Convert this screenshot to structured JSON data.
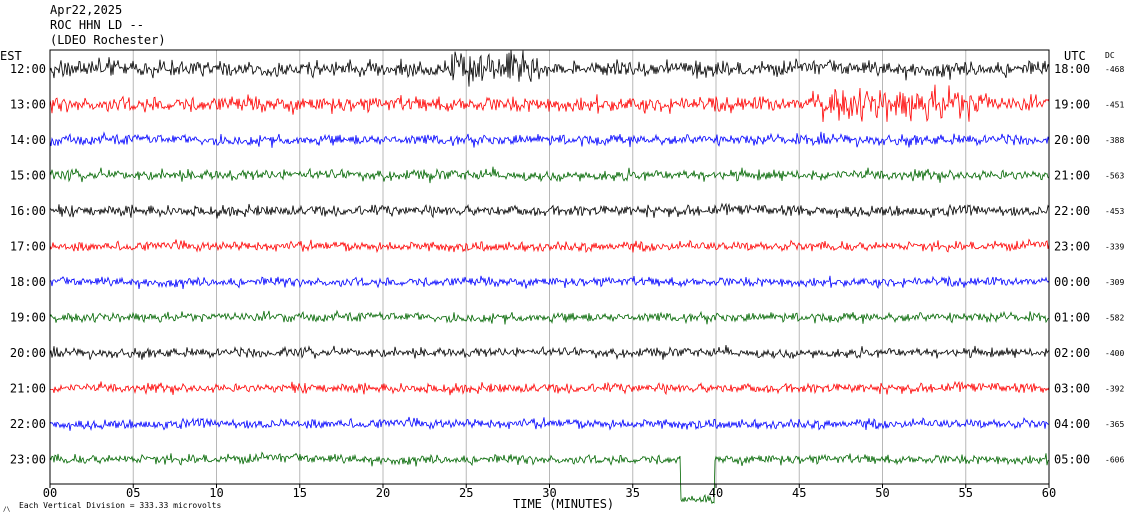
{
  "header": {
    "date": "Apr22,2025",
    "station": "ROC HHN LD --",
    "location": "(LDEO Rochester)"
  },
  "chart_data": {
    "type": "line",
    "title": "",
    "left_axis_label": "EST",
    "right_axis_label": "UTC",
    "dc_label": "DC",
    "xlabel": "TIME (MINUTES)",
    "xlim": [
      0,
      60
    ],
    "x_ticks": [
      "00",
      "05",
      "10",
      "15",
      "20",
      "25",
      "30",
      "35",
      "40",
      "45",
      "50",
      "55",
      "60"
    ],
    "grid_vertical": true,
    "colors": [
      "#000000",
      "#ff0000",
      "#0000ff",
      "#006600"
    ],
    "traces": [
      {
        "est": "12:00",
        "utc": "18:00",
        "dc": "-468",
        "color": "#000000"
      },
      {
        "est": "13:00",
        "utc": "19:00",
        "dc": "-451",
        "color": "#ff0000"
      },
      {
        "est": "14:00",
        "utc": "20:00",
        "dc": "-388",
        "color": "#0000ff"
      },
      {
        "est": "15:00",
        "utc": "21:00",
        "dc": "-563",
        "color": "#006600"
      },
      {
        "est": "16:00",
        "utc": "22:00",
        "dc": "-453",
        "color": "#000000"
      },
      {
        "est": "17:00",
        "utc": "23:00",
        "dc": "-339",
        "color": "#ff0000"
      },
      {
        "est": "18:00",
        "utc": "00:00",
        "dc": "-309",
        "color": "#0000ff"
      },
      {
        "est": "19:00",
        "utc": "01:00",
        "dc": "-582",
        "color": "#006600"
      },
      {
        "est": "20:00",
        "utc": "02:00",
        "dc": "-400",
        "color": "#000000"
      },
      {
        "est": "21:00",
        "utc": "03:00",
        "dc": "-392",
        "color": "#ff0000"
      },
      {
        "est": "22:00",
        "utc": "04:00",
        "dc": "-365",
        "color": "#0000ff"
      },
      {
        "est": "23:00",
        "utc": "05:00",
        "dc": "-606",
        "color": "#006600"
      }
    ],
    "scale_note": "Each Vertical Division =  333.33 microvolts"
  }
}
